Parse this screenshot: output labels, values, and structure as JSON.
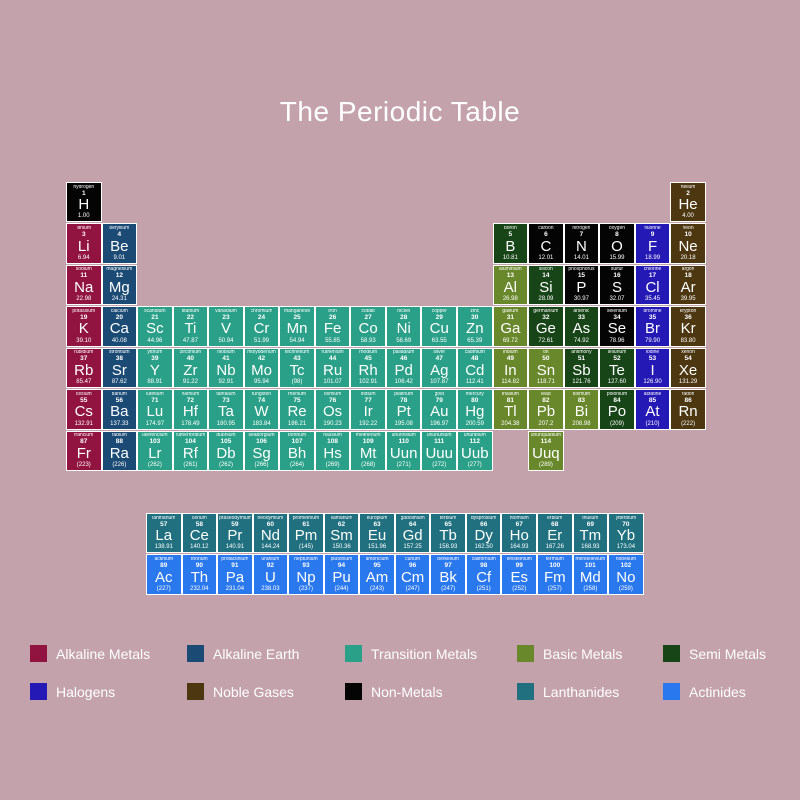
{
  "title": "The Periodic Table",
  "background_color": "#C4A2AB",
  "categories": {
    "alkali": {
      "label": "Alkaline Metals",
      "color": "#911440"
    },
    "alkaline_earth": {
      "label": "Alkaline Earth",
      "color": "#1B4A74"
    },
    "transition": {
      "label": "Transition Metals",
      "color": "#2BA088"
    },
    "basic": {
      "label": "Basic Metals",
      "color": "#68882B"
    },
    "semi": {
      "label": "Semi Metals",
      "color": "#174517"
    },
    "halogen": {
      "label": "Halogens",
      "color": "#2519B5"
    },
    "noble": {
      "label": "Noble Gases",
      "color": "#4C3711"
    },
    "nonmetal": {
      "label": "Non-Metals",
      "color": "#040404"
    },
    "lanthanide": {
      "label": "Lanthanides",
      "color": "#20707F"
    },
    "actinide": {
      "label": "Actinides",
      "color": "#2A78EE"
    }
  },
  "legend_order": [
    "alkali",
    "alkaline_earth",
    "transition",
    "basic",
    "semi",
    "halogen",
    "noble",
    "nonmetal",
    "lanthanide",
    "actinide"
  ],
  "main_table": [
    {
      "sym": "H",
      "name": "hydrogen",
      "num": "1",
      "mass": "1.00",
      "cat": "nonmetal",
      "row": 1,
      "col": 1
    },
    {
      "sym": "He",
      "name": "helium",
      "num": "2",
      "mass": "4.00",
      "cat": "noble",
      "row": 1,
      "col": 18
    },
    {
      "sym": "Li",
      "name": "lithium",
      "num": "3",
      "mass": "6.94",
      "cat": "alkali",
      "row": 2,
      "col": 1
    },
    {
      "sym": "Be",
      "name": "beryllium",
      "num": "4",
      "mass": "9.01",
      "cat": "alkaline_earth",
      "row": 2,
      "col": 2
    },
    {
      "sym": "B",
      "name": "boron",
      "num": "5",
      "mass": "10.81",
      "cat": "semi",
      "row": 2,
      "col": 13
    },
    {
      "sym": "C",
      "name": "carbon",
      "num": "6",
      "mass": "12.01",
      "cat": "nonmetal",
      "row": 2,
      "col": 14
    },
    {
      "sym": "N",
      "name": "nitrogen",
      "num": "7",
      "mass": "14.01",
      "cat": "nonmetal",
      "row": 2,
      "col": 15
    },
    {
      "sym": "O",
      "name": "oxygen",
      "num": "8",
      "mass": "15.99",
      "cat": "nonmetal",
      "row": 2,
      "col": 16
    },
    {
      "sym": "F",
      "name": "fluorine",
      "num": "9",
      "mass": "18.99",
      "cat": "halogen",
      "row": 2,
      "col": 17
    },
    {
      "sym": "Ne",
      "name": "neon",
      "num": "10",
      "mass": "20.18",
      "cat": "noble",
      "row": 2,
      "col": 18
    },
    {
      "sym": "Na",
      "name": "sodium",
      "num": "11",
      "mass": "22.98",
      "cat": "alkali",
      "row": 3,
      "col": 1
    },
    {
      "sym": "Mg",
      "name": "magnesium",
      "num": "12",
      "mass": "24.31",
      "cat": "alkaline_earth",
      "row": 3,
      "col": 2
    },
    {
      "sym": "Al",
      "name": "aluminium",
      "num": "13",
      "mass": "26.98",
      "cat": "basic",
      "row": 3,
      "col": 13
    },
    {
      "sym": "Si",
      "name": "silicon",
      "num": "14",
      "mass": "28.09",
      "cat": "semi",
      "row": 3,
      "col": 14
    },
    {
      "sym": "P",
      "name": "phosphorus",
      "num": "15",
      "mass": "30.97",
      "cat": "nonmetal",
      "row": 3,
      "col": 15
    },
    {
      "sym": "S",
      "name": "sulfur",
      "num": "16",
      "mass": "32.07",
      "cat": "nonmetal",
      "row": 3,
      "col": 16
    },
    {
      "sym": "Cl",
      "name": "chlorine",
      "num": "17",
      "mass": "35.45",
      "cat": "halogen",
      "row": 3,
      "col": 17
    },
    {
      "sym": "Ar",
      "name": "argon",
      "num": "18",
      "mass": "39.95",
      "cat": "noble",
      "row": 3,
      "col": 18
    },
    {
      "sym": "K",
      "name": "potassium",
      "num": "19",
      "mass": "39.10",
      "cat": "alkali",
      "row": 4,
      "col": 1
    },
    {
      "sym": "Ca",
      "name": "calcium",
      "num": "20",
      "mass": "40.08",
      "cat": "alkaline_earth",
      "row": 4,
      "col": 2
    },
    {
      "sym": "Sc",
      "name": "scandium",
      "num": "21",
      "mass": "44.96",
      "cat": "transition",
      "row": 4,
      "col": 3
    },
    {
      "sym": "Ti",
      "name": "titanium",
      "num": "22",
      "mass": "47.87",
      "cat": "transition",
      "row": 4,
      "col": 4
    },
    {
      "sym": "V",
      "name": "vanadium",
      "num": "23",
      "mass": "50.94",
      "cat": "transition",
      "row": 4,
      "col": 5
    },
    {
      "sym": "Cr",
      "name": "chromium",
      "num": "24",
      "mass": "51.99",
      "cat": "transition",
      "row": 4,
      "col": 6
    },
    {
      "sym": "Mn",
      "name": "manganese",
      "num": "25",
      "mass": "54.94",
      "cat": "transition",
      "row": 4,
      "col": 7
    },
    {
      "sym": "Fe",
      "name": "iron",
      "num": "26",
      "mass": "55.85",
      "cat": "transition",
      "row": 4,
      "col": 8
    },
    {
      "sym": "Co",
      "name": "cobalt",
      "num": "27",
      "mass": "58.93",
      "cat": "transition",
      "row": 4,
      "col": 9
    },
    {
      "sym": "Ni",
      "name": "nickel",
      "num": "28",
      "mass": "58.69",
      "cat": "transition",
      "row": 4,
      "col": 10
    },
    {
      "sym": "Cu",
      "name": "copper",
      "num": "29",
      "mass": "63.55",
      "cat": "transition",
      "row": 4,
      "col": 11
    },
    {
      "sym": "Zn",
      "name": "zinc",
      "num": "30",
      "mass": "65.39",
      "cat": "transition",
      "row": 4,
      "col": 12
    },
    {
      "sym": "Ga",
      "name": "gallium",
      "num": "31",
      "mass": "69.72",
      "cat": "basic",
      "row": 4,
      "col": 13
    },
    {
      "sym": "Ge",
      "name": "germanium",
      "num": "32",
      "mass": "72.61",
      "cat": "semi",
      "row": 4,
      "col": 14
    },
    {
      "sym": "As",
      "name": "arsenic",
      "num": "33",
      "mass": "74.92",
      "cat": "semi",
      "row": 4,
      "col": 15
    },
    {
      "sym": "Se",
      "name": "selenium",
      "num": "34",
      "mass": "78.96",
      "cat": "nonmetal",
      "row": 4,
      "col": 16
    },
    {
      "sym": "Br",
      "name": "bromine",
      "num": "35",
      "mass": "79.90",
      "cat": "halogen",
      "row": 4,
      "col": 17
    },
    {
      "sym": "Kr",
      "name": "krypton",
      "num": "36",
      "mass": "83.80",
      "cat": "noble",
      "row": 4,
      "col": 18
    },
    {
      "sym": "Rb",
      "name": "rubidium",
      "num": "37",
      "mass": "85.47",
      "cat": "alkali",
      "row": 5,
      "col": 1
    },
    {
      "sym": "Sr",
      "name": "strontium",
      "num": "38",
      "mass": "87.62",
      "cat": "alkaline_earth",
      "row": 5,
      "col": 2
    },
    {
      "sym": "Y",
      "name": "yttrium",
      "num": "39",
      "mass": "88.91",
      "cat": "transition",
      "row": 5,
      "col": 3
    },
    {
      "sym": "Zr",
      "name": "zirconium",
      "num": "40",
      "mass": "91.22",
      "cat": "transition",
      "row": 5,
      "col": 4
    },
    {
      "sym": "Nb",
      "name": "niobium",
      "num": "41",
      "mass": "92.91",
      "cat": "transition",
      "row": 5,
      "col": 5
    },
    {
      "sym": "Mo",
      "name": "molybdenum",
      "num": "42",
      "mass": "95.94",
      "cat": "transition",
      "row": 5,
      "col": 6
    },
    {
      "sym": "Tc",
      "name": "technetium",
      "num": "43",
      "mass": "(98)",
      "cat": "transition",
      "row": 5,
      "col": 7
    },
    {
      "sym": "Ru",
      "name": "ruthenium",
      "num": "44",
      "mass": "101.07",
      "cat": "transition",
      "row": 5,
      "col": 8
    },
    {
      "sym": "Rh",
      "name": "rhodium",
      "num": "45",
      "mass": "102.91",
      "cat": "transition",
      "row": 5,
      "col": 9
    },
    {
      "sym": "Pd",
      "name": "palladium",
      "num": "46",
      "mass": "106.42",
      "cat": "transition",
      "row": 5,
      "col": 10
    },
    {
      "sym": "Ag",
      "name": "silver",
      "num": "47",
      "mass": "107.87",
      "cat": "transition",
      "row": 5,
      "col": 11
    },
    {
      "sym": "Cd",
      "name": "cadmium",
      "num": "48",
      "mass": "112.41",
      "cat": "transition",
      "row": 5,
      "col": 12
    },
    {
      "sym": "In",
      "name": "indium",
      "num": "49",
      "mass": "114.82",
      "cat": "basic",
      "row": 5,
      "col": 13
    },
    {
      "sym": "Sn",
      "name": "tin",
      "num": "50",
      "mass": "118.71",
      "cat": "basic",
      "row": 5,
      "col": 14
    },
    {
      "sym": "Sb",
      "name": "antimony",
      "num": "51",
      "mass": "121.76",
      "cat": "semi",
      "row": 5,
      "col": 15
    },
    {
      "sym": "Te",
      "name": "tellurium",
      "num": "52",
      "mass": "127.60",
      "cat": "semi",
      "row": 5,
      "col": 16
    },
    {
      "sym": "I",
      "name": "iodine",
      "num": "53",
      "mass": "126.90",
      "cat": "halogen",
      "row": 5,
      "col": 17
    },
    {
      "sym": "Xe",
      "name": "xenon",
      "num": "54",
      "mass": "131.29",
      "cat": "noble",
      "row": 5,
      "col": 18
    },
    {
      "sym": "Cs",
      "name": "cesium",
      "num": "55",
      "mass": "132.91",
      "cat": "alkali",
      "row": 6,
      "col": 1
    },
    {
      "sym": "Ba",
      "name": "barium",
      "num": "56",
      "mass": "137.33",
      "cat": "alkaline_earth",
      "row": 6,
      "col": 2
    },
    {
      "sym": "Lu",
      "name": "lutetium",
      "num": "71",
      "mass": "174.97",
      "cat": "transition",
      "row": 6,
      "col": 3
    },
    {
      "sym": "Hf",
      "name": "hafnium",
      "num": "72",
      "mass": "178.49",
      "cat": "transition",
      "row": 6,
      "col": 4
    },
    {
      "sym": "Ta",
      "name": "tantalum",
      "num": "73",
      "mass": "180.95",
      "cat": "transition",
      "row": 6,
      "col": 5
    },
    {
      "sym": "W",
      "name": "tungsten",
      "num": "74",
      "mass": "183.84",
      "cat": "transition",
      "row": 6,
      "col": 6
    },
    {
      "sym": "Re",
      "name": "rhenium",
      "num": "75",
      "mass": "186.21",
      "cat": "transition",
      "row": 6,
      "col": 7
    },
    {
      "sym": "Os",
      "name": "osmium",
      "num": "76",
      "mass": "190.23",
      "cat": "transition",
      "row": 6,
      "col": 8
    },
    {
      "sym": "Ir",
      "name": "iridium",
      "num": "77",
      "mass": "192.22",
      "cat": "transition",
      "row": 6,
      "col": 9
    },
    {
      "sym": "Pt",
      "name": "platinum",
      "num": "78",
      "mass": "195.08",
      "cat": "transition",
      "row": 6,
      "col": 10
    },
    {
      "sym": "Au",
      "name": "gold",
      "num": "79",
      "mass": "196.97",
      "cat": "transition",
      "row": 6,
      "col": 11
    },
    {
      "sym": "Hg",
      "name": "mercury",
      "num": "80",
      "mass": "200.59",
      "cat": "transition",
      "row": 6,
      "col": 12
    },
    {
      "sym": "Tl",
      "name": "thallium",
      "num": "81",
      "mass": "204.38",
      "cat": "basic",
      "row": 6,
      "col": 13
    },
    {
      "sym": "Pb",
      "name": "lead",
      "num": "82",
      "mass": "207.2",
      "cat": "basic",
      "row": 6,
      "col": 14
    },
    {
      "sym": "Bi",
      "name": "bismuth",
      "num": "83",
      "mass": "208.98",
      "cat": "basic",
      "row": 6,
      "col": 15
    },
    {
      "sym": "Po",
      "name": "polonium",
      "num": "84",
      "mass": "(209)",
      "cat": "semi",
      "row": 6,
      "col": 16
    },
    {
      "sym": "At",
      "name": "astatine",
      "num": "85",
      "mass": "(210)",
      "cat": "halogen",
      "row": 6,
      "col": 17
    },
    {
      "sym": "Rn",
      "name": "radon",
      "num": "86",
      "mass": "(222)",
      "cat": "noble",
      "row": 6,
      "col": 18
    },
    {
      "sym": "Fr",
      "name": "francium",
      "num": "87",
      "mass": "(223)",
      "cat": "alkali",
      "row": 7,
      "col": 1
    },
    {
      "sym": "Ra",
      "name": "radium",
      "num": "88",
      "mass": "(226)",
      "cat": "alkaline_earth",
      "row": 7,
      "col": 2
    },
    {
      "sym": "Lr",
      "name": "lawrencium",
      "num": "103",
      "mass": "(262)",
      "cat": "transition",
      "row": 7,
      "col": 3
    },
    {
      "sym": "Rf",
      "name": "rutherfordium",
      "num": "104",
      "mass": "(261)",
      "cat": "transition",
      "row": 7,
      "col": 4
    },
    {
      "sym": "Db",
      "name": "dubnium",
      "num": "105",
      "mass": "(262)",
      "cat": "transition",
      "row": 7,
      "col": 5
    },
    {
      "sym": "Sg",
      "name": "seaborgium",
      "num": "106",
      "mass": "(266)",
      "cat": "transition",
      "row": 7,
      "col": 6
    },
    {
      "sym": "Bh",
      "name": "bohrium",
      "num": "107",
      "mass": "(264)",
      "cat": "transition",
      "row": 7,
      "col": 7
    },
    {
      "sym": "Hs",
      "name": "hassium",
      "num": "108",
      "mass": "(269)",
      "cat": "transition",
      "row": 7,
      "col": 8
    },
    {
      "sym": "Mt",
      "name": "meitnerium",
      "num": "109",
      "mass": "(268)",
      "cat": "transition",
      "row": 7,
      "col": 9
    },
    {
      "sym": "Uun",
      "name": "ununnilium",
      "num": "110",
      "mass": "(271)",
      "cat": "transition",
      "row": 7,
      "col": 10
    },
    {
      "sym": "Uuu",
      "name": "unununium",
      "num": "111",
      "mass": "(272)",
      "cat": "transition",
      "row": 7,
      "col": 11
    },
    {
      "sym": "Uub",
      "name": "ununbium",
      "num": "112",
      "mass": "(277)",
      "cat": "transition",
      "row": 7,
      "col": 12
    },
    {
      "sym": "Uuq",
      "name": "ununquadium",
      "num": "114",
      "mass": "(289)",
      "cat": "basic",
      "row": 7,
      "col": 14
    }
  ],
  "f_block": [
    {
      "sym": "La",
      "name": "lanthanum",
      "num": "57",
      "mass": "138.91",
      "cat": "lanthanide",
      "row": 1,
      "col": 1
    },
    {
      "sym": "Ce",
      "name": "cerium",
      "num": "58",
      "mass": "140.12",
      "cat": "lanthanide",
      "row": 1,
      "col": 2
    },
    {
      "sym": "Pr",
      "name": "praseodymium",
      "num": "59",
      "mass": "140.91",
      "cat": "lanthanide",
      "row": 1,
      "col": 3
    },
    {
      "sym": "Nd",
      "name": "neodymium",
      "num": "60",
      "mass": "144.24",
      "cat": "lanthanide",
      "row": 1,
      "col": 4
    },
    {
      "sym": "Pm",
      "name": "promethium",
      "num": "61",
      "mass": "(145)",
      "cat": "lanthanide",
      "row": 1,
      "col": 5
    },
    {
      "sym": "Sm",
      "name": "samarium",
      "num": "62",
      "mass": "150.36",
      "cat": "lanthanide",
      "row": 1,
      "col": 6
    },
    {
      "sym": "Eu",
      "name": "europium",
      "num": "63",
      "mass": "151.96",
      "cat": "lanthanide",
      "row": 1,
      "col": 7
    },
    {
      "sym": "Gd",
      "name": "gadolinium",
      "num": "64",
      "mass": "157.25",
      "cat": "lanthanide",
      "row": 1,
      "col": 8
    },
    {
      "sym": "Tb",
      "name": "terbium",
      "num": "65",
      "mass": "158.93",
      "cat": "lanthanide",
      "row": 1,
      "col": 9
    },
    {
      "sym": "Dy",
      "name": "dysprosium",
      "num": "66",
      "mass": "162.50",
      "cat": "lanthanide",
      "row": 1,
      "col": 10
    },
    {
      "sym": "Ho",
      "name": "holmium",
      "num": "67",
      "mass": "164.93",
      "cat": "lanthanide",
      "row": 1,
      "col": 11
    },
    {
      "sym": "Er",
      "name": "erbium",
      "num": "68",
      "mass": "167.26",
      "cat": "lanthanide",
      "row": 1,
      "col": 12
    },
    {
      "sym": "Tm",
      "name": "thulium",
      "num": "69",
      "mass": "168.93",
      "cat": "lanthanide",
      "row": 1,
      "col": 13
    },
    {
      "sym": "Yb",
      "name": "ytterbium",
      "num": "70",
      "mass": "173.04",
      "cat": "lanthanide",
      "row": 1,
      "col": 14
    },
    {
      "sym": "Ac",
      "name": "actinium",
      "num": "89",
      "mass": "(227)",
      "cat": "actinide",
      "row": 2,
      "col": 1
    },
    {
      "sym": "Th",
      "name": "thorium",
      "num": "90",
      "mass": "232.04",
      "cat": "actinide",
      "row": 2,
      "col": 2
    },
    {
      "sym": "Pa",
      "name": "protactinium",
      "num": "91",
      "mass": "231.04",
      "cat": "actinide",
      "row": 2,
      "col": 3
    },
    {
      "sym": "U",
      "name": "uranium",
      "num": "92",
      "mass": "238.03",
      "cat": "actinide",
      "row": 2,
      "col": 4
    },
    {
      "sym": "Np",
      "name": "neptunium",
      "num": "93",
      "mass": "(237)",
      "cat": "actinide",
      "row": 2,
      "col": 5
    },
    {
      "sym": "Pu",
      "name": "plutonium",
      "num": "94",
      "mass": "(244)",
      "cat": "actinide",
      "row": 2,
      "col": 6
    },
    {
      "sym": "Am",
      "name": "americium",
      "num": "95",
      "mass": "(243)",
      "cat": "actinide",
      "row": 2,
      "col": 7
    },
    {
      "sym": "Cm",
      "name": "curium",
      "num": "96",
      "mass": "(247)",
      "cat": "actinide",
      "row": 2,
      "col": 8
    },
    {
      "sym": "Bk",
      "name": "berkelium",
      "num": "97",
      "mass": "(247)",
      "cat": "actinide",
      "row": 2,
      "col": 9
    },
    {
      "sym": "Cf",
      "name": "californium",
      "num": "98",
      "mass": "(251)",
      "cat": "actinide",
      "row": 2,
      "col": 10
    },
    {
      "sym": "Es",
      "name": "einsteinium",
      "num": "99",
      "mass": "(252)",
      "cat": "actinide",
      "row": 2,
      "col": 11
    },
    {
      "sym": "Fm",
      "name": "fermium",
      "num": "100",
      "mass": "(257)",
      "cat": "actinide",
      "row": 2,
      "col": 12
    },
    {
      "sym": "Md",
      "name": "mendelevium",
      "num": "101",
      "mass": "(258)",
      "cat": "actinide",
      "row": 2,
      "col": 13
    },
    {
      "sym": "No",
      "name": "nobelium",
      "num": "102",
      "mass": "(259)",
      "cat": "actinide",
      "row": 2,
      "col": 14
    }
  ]
}
